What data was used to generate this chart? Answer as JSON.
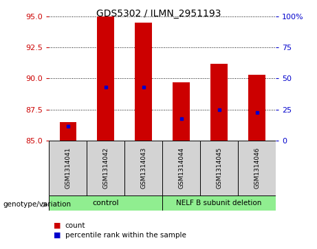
{
  "title": "GDS5302 / ILMN_2951193",
  "samples": [
    "GSM1314041",
    "GSM1314042",
    "GSM1314043",
    "GSM1314044",
    "GSM1314045",
    "GSM1314046"
  ],
  "bar_tops": [
    86.5,
    95.0,
    94.5,
    89.7,
    91.2,
    90.3
  ],
  "percentile_values": [
    86.15,
    89.28,
    89.28,
    86.78,
    87.5,
    87.28
  ],
  "bar_bottom": 85,
  "ylim_left": [
    85,
    95
  ],
  "ylim_right": [
    0,
    100
  ],
  "yticks_left": [
    85,
    87.5,
    90,
    92.5,
    95
  ],
  "yticks_right": [
    0,
    25,
    50,
    75,
    100
  ],
  "ytick_labels_right": [
    "0",
    "25",
    "50",
    "75",
    "100%"
  ],
  "group_labels": [
    "control",
    "NELF B subunit deletion"
  ],
  "group_color": "#90ee90",
  "bar_color": "#cc0000",
  "dot_color": "#0000cc",
  "sample_bg_color": "#d3d3d3",
  "left_tick_color": "#cc0000",
  "right_tick_color": "#0000cc",
  "bar_width": 0.45,
  "legend_count_label": "count",
  "legend_pct_label": "percentile rank within the sample",
  "genotype_label": "genotype/variation"
}
